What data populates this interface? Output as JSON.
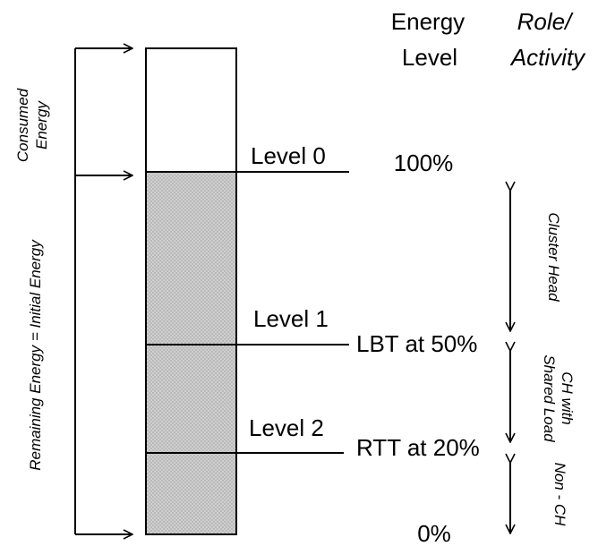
{
  "headers": {
    "energy_level_line1": "Energy",
    "energy_level_line2": "Level",
    "role_line1": "Role/",
    "role_line2": "Activity"
  },
  "bar_labels": {
    "consumed_line1": "Consumed",
    "consumed_line2": "Energy",
    "remaining": "Remaining Energy = Initial Energy"
  },
  "levels": [
    {
      "label": "Level 0",
      "value": "100%"
    },
    {
      "label": "Level 1",
      "value": "LBT at 50%"
    },
    {
      "label": "Level 2",
      "value": "RTT at 20%"
    }
  ],
  "zero_value": "0%",
  "roles": {
    "cluster_head": "Cluster Head",
    "ch_shared_line1": "CH with",
    "ch_shared_line2": "Shared Load",
    "non_ch": "Non - CH"
  },
  "colors": {
    "line": "#000000",
    "fill_base": "#cfcfcf",
    "fill_dots": "#9a9a9a",
    "background": "#ffffff"
  }
}
